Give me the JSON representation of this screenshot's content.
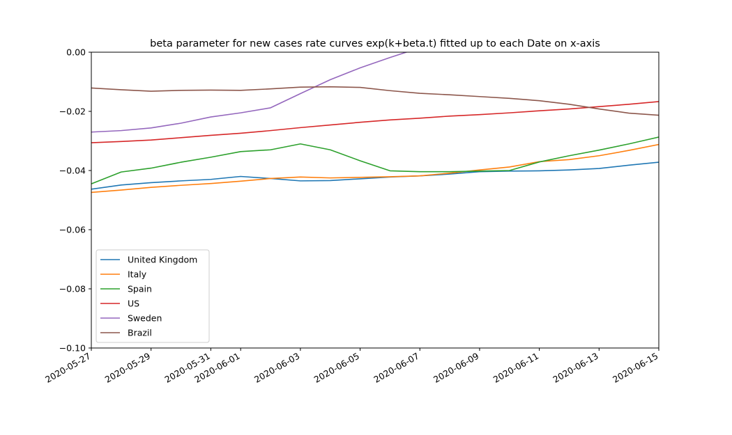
{
  "chart_data": {
    "type": "line",
    "title": "beta parameter for new cases rate curves exp(k+beta.t) fitted up to each Date on x-axis",
    "xlabel": "",
    "ylabel": "",
    "x": [
      "2020-05-27",
      "2020-05-28",
      "2020-05-29",
      "2020-05-30",
      "2020-05-31",
      "2020-06-01",
      "2020-06-02",
      "2020-06-03",
      "2020-06-04",
      "2020-06-05",
      "2020-06-06",
      "2020-06-07",
      "2020-06-08",
      "2020-06-09",
      "2020-06-10",
      "2020-06-11",
      "2020-06-12",
      "2020-06-13",
      "2020-06-14",
      "2020-06-15"
    ],
    "xlim": [
      "2020-05-27",
      "2020-06-15"
    ],
    "xticks": [
      "2020-05-27",
      "2020-05-29",
      "2020-05-31",
      "2020-06-01",
      "2020-06-03",
      "2020-06-05",
      "2020-06-07",
      "2020-06-09",
      "2020-06-11",
      "2020-06-13",
      "2020-06-15"
    ],
    "ylim": [
      -0.1,
      0.0
    ],
    "yticks": [
      0.0,
      -0.02,
      -0.04,
      -0.06,
      -0.08,
      -0.1
    ],
    "ytick_labels": [
      "0.00",
      "−0.02",
      "−0.04",
      "−0.06",
      "−0.08",
      "−0.10"
    ],
    "grid": false,
    "legend_position": "lower-left",
    "series": [
      {
        "name": "United Kingdom",
        "color": "#1f77b4",
        "values": [
          -0.0463,
          -0.0449,
          -0.0441,
          -0.0435,
          -0.043,
          -0.042,
          -0.0427,
          -0.0435,
          -0.0434,
          -0.0428,
          -0.0422,
          -0.0418,
          -0.0412,
          -0.0404,
          -0.0402,
          -0.0401,
          -0.0398,
          -0.0393,
          -0.0382,
          -0.0372
        ]
      },
      {
        "name": "Italy",
        "color": "#ff7f0e",
        "values": [
          -0.0474,
          -0.0466,
          -0.0457,
          -0.045,
          -0.0444,
          -0.0436,
          -0.0427,
          -0.0422,
          -0.0425,
          -0.0423,
          -0.0421,
          -0.0418,
          -0.0409,
          -0.0398,
          -0.0388,
          -0.037,
          -0.0363,
          -0.035,
          -0.0332,
          -0.0312
        ]
      },
      {
        "name": "Spain",
        "color": "#2ca02c",
        "values": [
          -0.0445,
          -0.0405,
          -0.0392,
          -0.0372,
          -0.0355,
          -0.0336,
          -0.033,
          -0.031,
          -0.033,
          -0.0367,
          -0.0401,
          -0.0404,
          -0.0404,
          -0.0402,
          -0.04,
          -0.0371,
          -0.035,
          -0.0331,
          -0.031,
          -0.0287
        ]
      },
      {
        "name": "US",
        "color": "#d62728",
        "values": [
          -0.0306,
          -0.0302,
          -0.0297,
          -0.0289,
          -0.0281,
          -0.0274,
          -0.0265,
          -0.0255,
          -0.0246,
          -0.0237,
          -0.0229,
          -0.0223,
          -0.0216,
          -0.0211,
          -0.0205,
          -0.0198,
          -0.0192,
          -0.0184,
          -0.0176,
          -0.0167
        ]
      },
      {
        "name": "Sweden",
        "color": "#9467bd",
        "values": [
          -0.027,
          -0.0265,
          -0.0256,
          -0.024,
          -0.0219,
          -0.0205,
          -0.0188,
          -0.014,
          -0.0093,
          -0.0053,
          -0.0018,
          0.0015,
          null,
          null,
          null,
          null,
          null,
          null,
          null,
          null
        ]
      },
      {
        "name": "Brazil",
        "color": "#8c564b",
        "values": [
          -0.0121,
          -0.0127,
          -0.0132,
          -0.0129,
          -0.0128,
          -0.0129,
          -0.0124,
          -0.0118,
          -0.0117,
          -0.0119,
          -0.013,
          -0.0139,
          -0.0144,
          -0.015,
          -0.0156,
          -0.0164,
          -0.0176,
          -0.0192,
          -0.0206,
          -0.0213
        ]
      }
    ]
  }
}
